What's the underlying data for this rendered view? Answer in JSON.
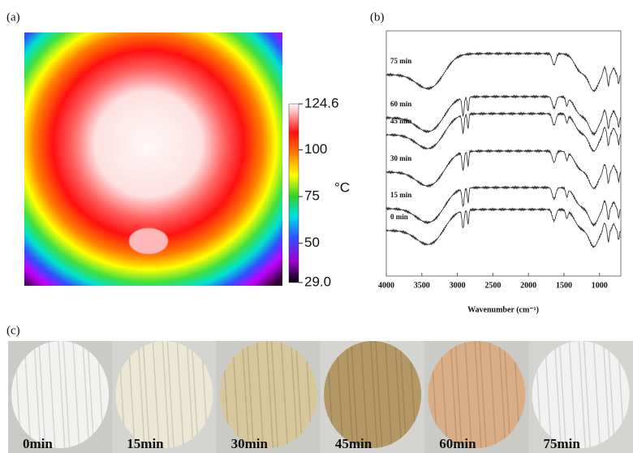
{
  "panel_a": {
    "label": "(a)",
    "unit": "°C",
    "range": [
      {
        "value": 29,
        "label": "29.0"
      },
      124.6
    ],
    "ticks": [
      124.6,
      100,
      75,
      50,
      {
        "value": 29,
        "label": "29.0"
      }
    ]
  },
  "panel_b": {
    "label": "(b)",
    "x_label": "Wavenumber (cm⁻¹)",
    "xlim": [
      4000,
      700
    ],
    "xticks": [
      4000,
      3500,
      3000,
      2500,
      2000,
      1500,
      1000
    ],
    "curve_labels": [
      "75 min",
      "60 min",
      "45 min",
      "30 min",
      "15 min",
      "0 min"
    ]
  },
  "panel_c": {
    "label": "(c)",
    "samples": [
      {
        "label": "0min",
        "color": "#f3f3f1"
      },
      {
        "label": "15min",
        "color": "#ebe7d4"
      },
      {
        "label": "30min",
        "color": "#d8c69c"
      },
      {
        "label": "45min",
        "color": "#b39866"
      },
      {
        "label": "60min",
        "color": "#d9ae86"
      },
      {
        "label": "75min",
        "color": "#f1f2f1"
      }
    ]
  }
}
